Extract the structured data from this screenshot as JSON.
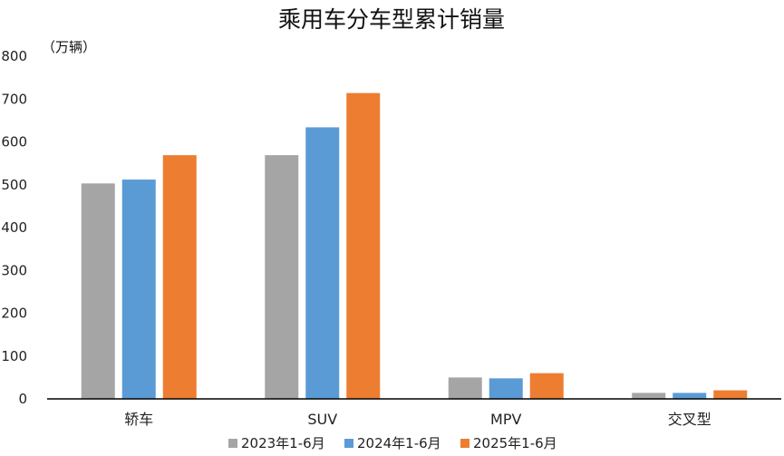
{
  "chart_data": {
    "type": "bar",
    "title": "乘用车分车型累计销量",
    "unit_label": "（万辆）",
    "categories": [
      "轿车",
      "SUV",
      "MPV",
      "交叉型"
    ],
    "series": [
      {
        "name": "2023年1-6月",
        "color": "#A5A5A5",
        "values": [
          503,
          569,
          50,
          14
        ]
      },
      {
        "name": "2024年1-6月",
        "color": "#5B9BD5",
        "values": [
          512,
          634,
          48,
          14
        ]
      },
      {
        "name": "2025年1-6月",
        "color": "#ED7D31",
        "values": [
          569,
          714,
          60,
          20
        ]
      }
    ],
    "ylim": [
      0,
      800
    ],
    "yticks": [
      0,
      100,
      200,
      300,
      400,
      500,
      600,
      700,
      800
    ],
    "grid": false,
    "legend_position": "bottom"
  }
}
